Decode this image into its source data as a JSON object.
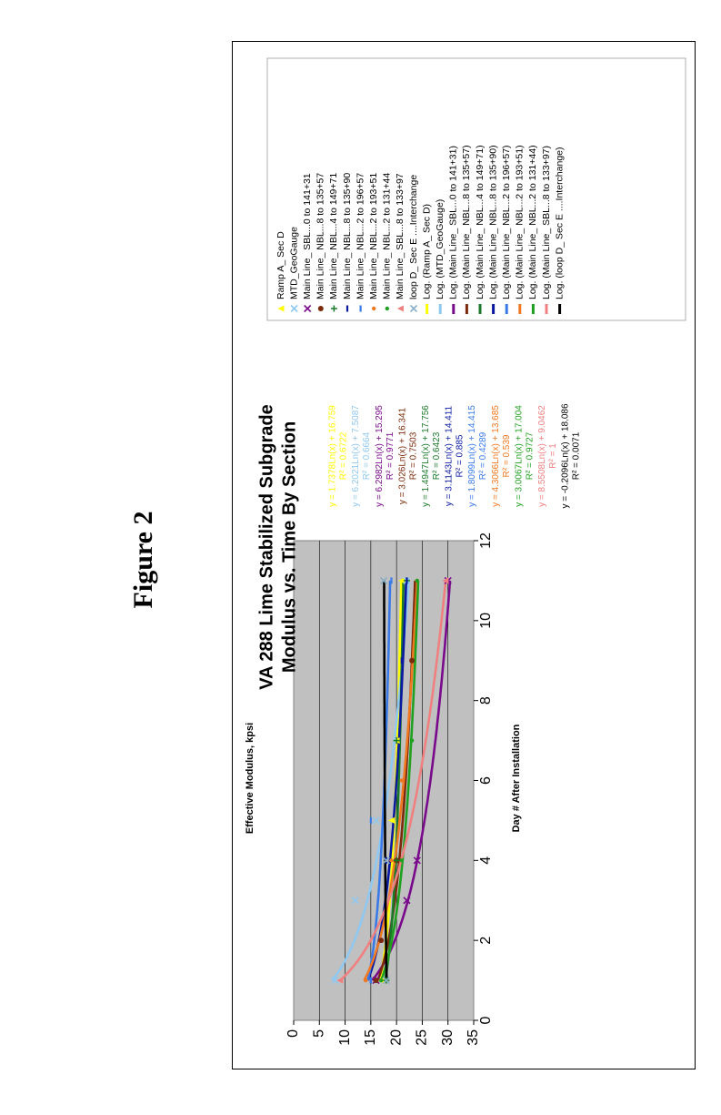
{
  "figure_label": "Figure 2",
  "chart_data": {
    "type": "scatter",
    "title": "VA 288 Lime Stabilized Subgrade",
    "subtitle": "Modulus vs. Time By Section",
    "xlabel": "Day # After Installation",
    "ylabel": "Effective Modulus, kpsi",
    "xlim": [
      0,
      12
    ],
    "ylim": [
      0,
      35
    ],
    "xticks": [
      "0",
      "2",
      "4",
      "6",
      "8",
      "10",
      "12"
    ],
    "yticks": [
      "0",
      "5",
      "10",
      "15",
      "20",
      "25",
      "30",
      "35"
    ],
    "grid": true,
    "plot_background": "#c0c0c0",
    "legend_position": "right",
    "series": [
      {
        "name": "Ramp A_ Sec D",
        "color": "#ffff00",
        "marker": "triangle",
        "a": 1.7378,
        "b": 16.759,
        "eq": "y = 1.7378Ln(x) + 16.759",
        "r2": "R² = 0.6722",
        "fit_label": "Log. (Ramp A_ Sec D)",
        "points": [
          [
            1,
            17
          ],
          [
            5,
            19
          ],
          [
            7,
            20
          ],
          [
            11,
            21
          ]
        ]
      },
      {
        "name": "MTD_GeoGauge",
        "color": "#8fc8f0",
        "marker": "x",
        "a": 6.2021,
        "b": 7.5087,
        "eq": "y = 6.2021Ln(x) + 7.5087",
        "r2": "R² = 0.6664",
        "fit_label": "Log. (MTD_GeoGauge)",
        "points": [
          [
            1,
            8
          ],
          [
            3,
            12
          ],
          [
            5,
            16
          ],
          [
            11,
            22
          ]
        ]
      },
      {
        "name": "Main Line_ SBL...0 to 141+31",
        "color": "#7a0a8c",
        "marker": "x",
        "a": 6.2982,
        "b": 15.295,
        "eq": "y = 6.2982Ln(x) + 15.295",
        "r2": "R² = 0.9771",
        "fit_label": "Log. (Main Line_ SBL...0 to 141+31)",
        "points": [
          [
            1,
            16
          ],
          [
            3,
            22
          ],
          [
            4,
            24
          ],
          [
            11,
            30
          ]
        ]
      },
      {
        "name": "Main Line_ NBL...8 to 135+57",
        "color": "#7a2a0a",
        "marker": "circle",
        "a": 3.026,
        "b": 16.341,
        "eq": "y = 3.026Ln(x) + 16.341",
        "r2": "R² = 0.7503",
        "fit_label": "Log. (Main Line_ NBL...8 to 135+57)",
        "points": [
          [
            1,
            16
          ],
          [
            2,
            17
          ],
          [
            4,
            20
          ],
          [
            9,
            23
          ]
        ]
      },
      {
        "name": "Main Line_ NBL...4 to 149+71",
        "color": "#1a7a2a",
        "marker": "plus",
        "a": 1.4947,
        "b": 17.756,
        "eq": "y = 1.4947Ln(x) + 17.756",
        "r2": "R² = 0.6423",
        "fit_label": "Log. (Main Line_ NBL...4 to 149+71)",
        "points": [
          [
            1,
            18
          ],
          [
            4,
            20
          ],
          [
            7,
            20
          ],
          [
            11,
            22
          ]
        ]
      },
      {
        "name": "Main Line_ NBL...8 to 135+90",
        "color": "#0a1aa0",
        "marker": "dash",
        "a": 3.1143,
        "b": 14.411,
        "eq": "y = 3.1143Ln(x) + 14.411",
        "r2": "R² = 0.885",
        "fit_label": "Log. (Main Line_ NBL...8 to 135+90)",
        "points": [
          [
            1,
            15
          ],
          [
            4,
            18
          ],
          [
            9,
            21
          ],
          [
            11,
            22
          ]
        ]
      },
      {
        "name": "Main Line_ NBL...2 to 196+57",
        "color": "#3a7ae8",
        "marker": "dash",
        "a": 1.8099,
        "b": 14.415,
        "eq": "y = 1.8099Ln(x) + 14.415",
        "r2": "R² = 0.4289",
        "fit_label": "Log. (Main Line_ NBL...2 to 196+57)",
        "points": [
          [
            1,
            15
          ],
          [
            5,
            15
          ],
          [
            11,
            19
          ]
        ]
      },
      {
        "name": "Main Line_ NBL...2 to 193+51",
        "color": "#f07820",
        "marker": "dot",
        "a": 4.3066,
        "b": 13.685,
        "eq": "y = 4.3066Ln(x) + 13.685",
        "r2": "R² = 0.539",
        "fit_label": "Log. (Main Line_ NBL...2 to 193+51)",
        "points": [
          [
            1,
            14
          ],
          [
            4,
            19
          ],
          [
            6,
            21
          ],
          [
            11,
            24
          ]
        ]
      },
      {
        "name": "Main Line_ NBL...2 to 131+44",
        "color": "#20a020",
        "marker": "dot",
        "a": 3.0067,
        "b": 17.004,
        "eq": "y = 3.0067Ln(x) + 17.004",
        "r2": "R² = 0.9727",
        "fit_label": "Log. (Main Line_ NBL...2 to 131+44)",
        "points": [
          [
            1,
            17
          ],
          [
            4,
            21
          ],
          [
            7,
            23
          ],
          [
            11,
            24
          ]
        ]
      },
      {
        "name": "Main Line_ SBL...8 to 133+97",
        "color": "#f08080",
        "marker": "triangle",
        "a": 8.5508,
        "b": 9.0462,
        "eq": "y = 8.5508Ln(x) + 9.0462",
        "r2": "R² = 1",
        "fit_label": "Log. (Main Line_ SBL...8 to 133+97)",
        "points": [
          [
            1,
            9
          ],
          [
            11,
            29.5
          ]
        ]
      },
      {
        "name": "loop D_ Sec E ....Interchange",
        "color": "#8ab0c8",
        "marker": "x",
        "a": -0.2096,
        "b": 18.086,
        "eq": "y = -0.2096Ln(x) + 18.086",
        "r2": "R² = 0.0071",
        "fit_label": "Log. (loop D_ Sec E ....Interchange)",
        "fit_color": "#000000",
        "points": [
          [
            1,
            18
          ],
          [
            4,
            18
          ],
          [
            11,
            17.5
          ]
        ]
      }
    ]
  }
}
